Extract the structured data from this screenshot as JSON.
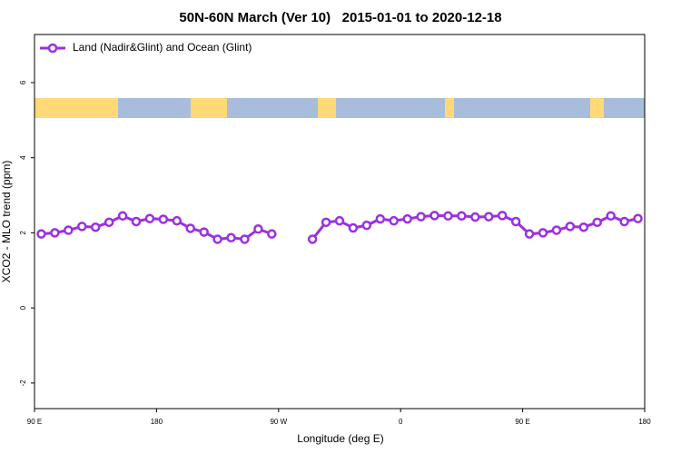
{
  "chart_data": {
    "type": "line",
    "title": "50N-60N March (Ver 10)   2015-01-01 to 2020-12-18",
    "xlabel": "Longitude (deg E)",
    "ylabel": "XCO2 - MLO trend (ppm)",
    "x": [
      95,
      105,
      115,
      125,
      135,
      145,
      155,
      165,
      175,
      185,
      195,
      205,
      215,
      225,
      235,
      245,
      255,
      265,
      275,
      285,
      295,
      305,
      315,
      325,
      335,
      345,
      355,
      365,
      375,
      385,
      395,
      405,
      415,
      425,
      435,
      445,
      455,
      465,
      475,
      485,
      495,
      505,
      515,
      525,
      535
    ],
    "series": [
      {
        "name": "Land (Nadir&Glint) and Ocean (Glint)",
        "color": "#9b30e0",
        "values": [
          1.97,
          2.0,
          2.07,
          2.17,
          2.15,
          2.28,
          2.45,
          2.3,
          2.38,
          2.36,
          2.32,
          2.12,
          2.02,
          1.83,
          1.87,
          1.83,
          2.1,
          1.97,
          null,
          null,
          1.83,
          2.28,
          2.32,
          2.13,
          2.2,
          2.37,
          2.32,
          2.37,
          2.43,
          2.46,
          2.45,
          2.45,
          2.42,
          2.43,
          2.46,
          2.3,
          1.97,
          2.0,
          2.07,
          2.17,
          2.15,
          2.28,
          2.45,
          2.3,
          2.38
        ]
      }
    ],
    "xlim": [
      90,
      540
    ],
    "xticks": [
      {
        "value": 90,
        "label": "90 E"
      },
      180,
      {
        "value": 270,
        "label": "90 W"
      },
      {
        "value": 360,
        "label": "0"
      },
      {
        "value": 450,
        "label": "90 E"
      },
      {
        "value": 540,
        "label": "180"
      }
    ],
    "ylim": [
      -2.68,
      7.28
    ],
    "yticks": [
      -2,
      0,
      2,
      4,
      6
    ],
    "legend": "top-left"
  }
}
